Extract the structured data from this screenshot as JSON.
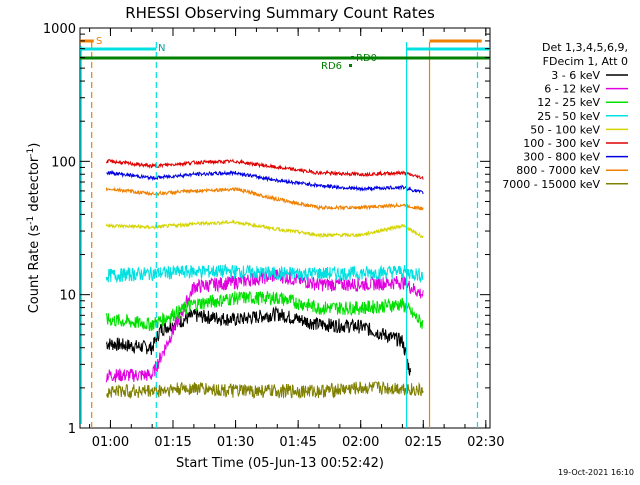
{
  "chart_data": {
    "type": "line",
    "title": "RHESSI Observing Summary Count Rates",
    "xlabel": "Start Time (05-Jun-13 00:52:42)",
    "ylabel": "Count Rate (s⁻¹ detector⁻¹)",
    "ylabel_main": "Count Rate (s",
    "ylabel_sup1": "-1",
    "ylabel_mid": " detector",
    "ylabel_sup2": "-1",
    "ylabel_end": ")",
    "y_scale": "log",
    "ylim": [
      1,
      1000
    ],
    "xlim": [
      "00:52:42",
      "02:31:00"
    ],
    "x_ticks": [
      "01:00",
      "01:15",
      "01:30",
      "01:45",
      "02:00",
      "02:15",
      "02:30"
    ],
    "y_ticks": [
      "1",
      "10",
      "100",
      "1000"
    ],
    "legend_header": [
      "Det 1,3,4,5,6,9,",
      "FDecim 1, Att 0"
    ],
    "legend_placement": "right",
    "timestamp": "19-Oct-2021 16:10",
    "annotations": {
      "saa_label": "S",
      "night_label": "N",
      "rd_labels": [
        "RD0",
        "RD6"
      ]
    },
    "series": [
      {
        "name": "3 - 6 keV",
        "color": "#000000",
        "x": [
          "01:00",
          "01:10",
          "01:12",
          "01:20",
          "01:30",
          "01:40",
          "01:50",
          "02:00",
          "02:10",
          "02:12"
        ],
        "values": [
          4.3,
          4.0,
          5.5,
          7.0,
          6.5,
          7.2,
          6.0,
          5.8,
          4.5,
          2.5
        ]
      },
      {
        "name": "6 - 12 keV",
        "color": "#e000e0",
        "x": [
          "01:00",
          "01:10",
          "01:20",
          "01:30",
          "01:40",
          "01:50",
          "02:00",
          "02:10",
          "02:15"
        ],
        "values": [
          2.5,
          2.5,
          11.5,
          12.5,
          14.0,
          12.0,
          12.0,
          12.5,
          10.0
        ]
      },
      {
        "name": "12 - 25 keV",
        "color": "#00e000",
        "x": [
          "01:00",
          "01:10",
          "01:20",
          "01:30",
          "01:40",
          "01:50",
          "02:00",
          "02:10",
          "02:15"
        ],
        "values": [
          6.5,
          6.0,
          8.5,
          9.5,
          9.5,
          8.0,
          8.0,
          8.5,
          6.0
        ]
      },
      {
        "name": "25 - 50 keV",
        "color": "#00e0e0",
        "x": [
          "01:00",
          "01:10",
          "01:20",
          "01:30",
          "01:40",
          "01:50",
          "02:00",
          "02:10",
          "02:15"
        ],
        "values": [
          14.0,
          14.5,
          15.0,
          15.0,
          14.5,
          14.5,
          14.5,
          15.0,
          14.0
        ]
      },
      {
        "name": "50 - 100 keV",
        "color": "#d4d400",
        "x": [
          "01:00",
          "01:10",
          "01:20",
          "01:30",
          "01:40",
          "01:50",
          "02:00",
          "02:10",
          "02:15"
        ],
        "values": [
          33,
          32,
          34,
          35,
          31,
          28,
          28,
          33,
          27
        ]
      },
      {
        "name": "100 - 300 keV",
        "color": "#e00000",
        "x": [
          "01:00",
          "01:10",
          "01:20",
          "01:30",
          "01:40",
          "01:50",
          "02:00",
          "02:10",
          "02:15"
        ],
        "values": [
          100,
          92,
          98,
          100,
          90,
          82,
          80,
          82,
          75
        ]
      },
      {
        "name": "300 - 800 keV",
        "color": "#0000e0",
        "x": [
          "01:00",
          "01:10",
          "01:20",
          "01:30",
          "01:40",
          "01:50",
          "02:00",
          "02:10",
          "02:15"
        ],
        "values": [
          82,
          75,
          80,
          82,
          72,
          66,
          62,
          64,
          58
        ]
      },
      {
        "name": "800 - 7000 keV",
        "color": "#f08000",
        "x": [
          "01:00",
          "01:10",
          "01:20",
          "01:30",
          "01:40",
          "01:50",
          "02:00",
          "02:10",
          "02:15"
        ],
        "values": [
          62,
          57,
          60,
          62,
          52,
          45,
          45,
          47,
          44
        ]
      },
      {
        "name": "7000 - 15000 keV",
        "color": "#808000",
        "x": [
          "01:00",
          "01:10",
          "01:20",
          "01:30",
          "01:40",
          "01:50",
          "02:00",
          "02:10",
          "02:15"
        ],
        "values": [
          1.9,
          1.9,
          2.0,
          1.9,
          1.9,
          1.9,
          2.0,
          2.0,
          1.9
        ]
      }
    ]
  }
}
